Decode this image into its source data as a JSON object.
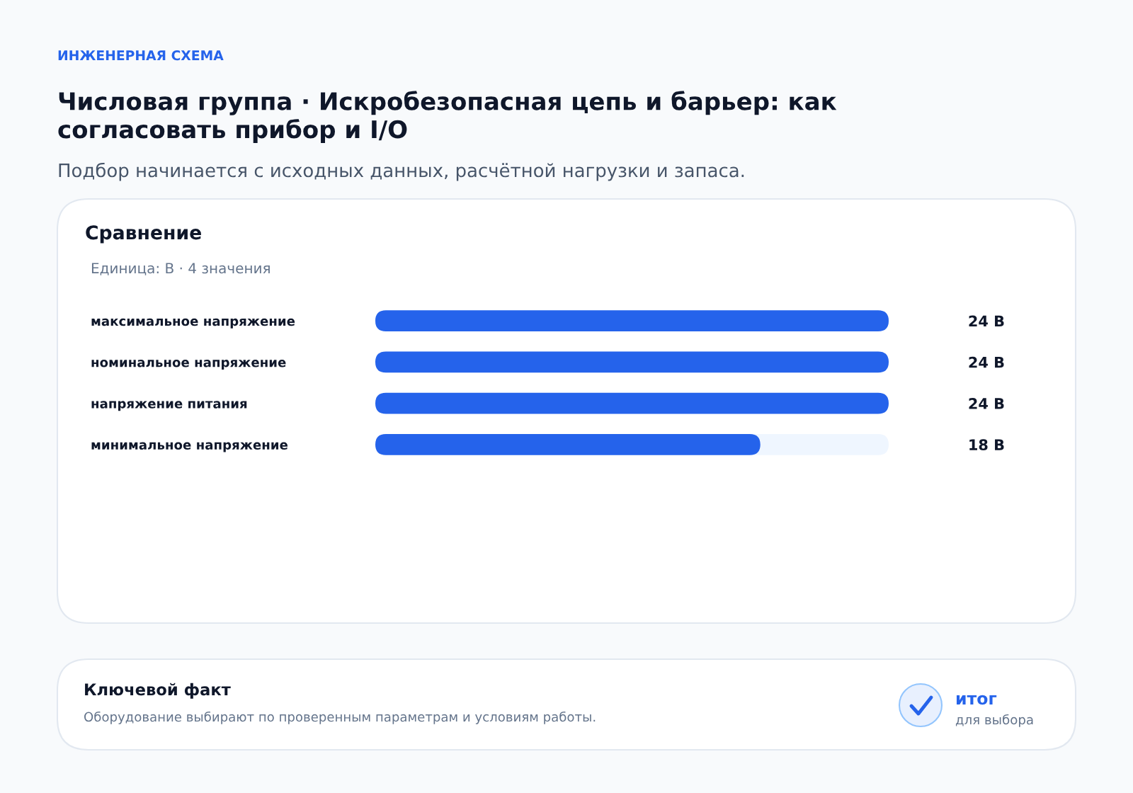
{
  "chart_data": {
    "type": "bar",
    "orientation": "horizontal",
    "title": "Числовая группа · Искробезопасная цепь и барьер: как согласовать прибор и I/O",
    "subtitle": "Подбор начинается с исходных данных, расчётной нагрузки и запаса.",
    "annotations": [
      "ИНЖЕНЕРНАЯ СХЕМА",
      "Сравнение",
      "Единица: В · 4 значения",
      "Ключевой факт",
      "Оборудование выбирают по проверенным параметрам и условиям работы.",
      "итог",
      "для выбора"
    ],
    "categories": [
      "максимальное напряжение",
      "номинальное напряжение",
      "напряжение питания",
      "минимальное напряжение"
    ],
    "values": [
      24,
      24,
      24,
      18
    ],
    "color": "#2563eb",
    "value_labels": [
      "24 В",
      "24 В",
      "24 В",
      "18 В"
    ],
    "xlim": [
      0,
      24
    ],
    "tick_labels": "y"
  }
}
